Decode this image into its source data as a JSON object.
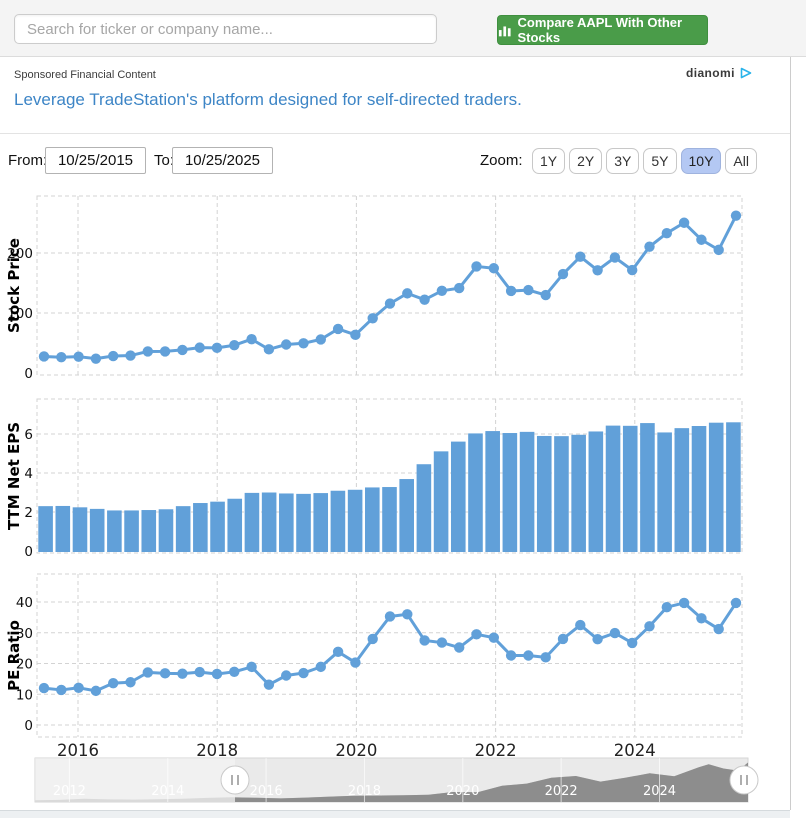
{
  "topbar": {
    "search_placeholder": "Search for ticker or company name...",
    "compare_button_label": "Compare AAPL With Other Stocks"
  },
  "sponsored": {
    "section_label": "Sponsored Financial Content",
    "provider_label": "dianomi",
    "headline": "Leverage TradeStation's platform designed for self-directed traders."
  },
  "controls": {
    "from_label": "From:",
    "from_value": "10/25/2015",
    "to_label": "To:",
    "to_value": "10/25/2025",
    "zoom_label": "Zoom:",
    "zoom_options": [
      "1Y",
      "2Y",
      "3Y",
      "5Y",
      "10Y",
      "All"
    ],
    "zoom_selected": "10Y"
  },
  "colors": {
    "accent_blue": "#61a0d9",
    "button_green": "#4a9c49",
    "zoom_selected_bg": "#b4c8f3",
    "link_blue": "#3d85c6",
    "grid": "#d3d3d3",
    "axis_text": "#111111",
    "nav_selected_area": "#8d8d8d",
    "nav_unselected_area": "#c6c6c6",
    "nav_background": "#eaeaea",
    "nav_label_text": "#ffffff"
  },
  "chart_data": [
    {
      "type": "line",
      "name": "stock-price",
      "ylabel": "Stock Price",
      "yticks": [
        0,
        100,
        200
      ],
      "ylim": [
        0,
        295
      ],
      "xticks": [
        "2016",
        "2018",
        "2020",
        "2022",
        "2024"
      ],
      "grid": "dashed",
      "markers": true,
      "x": [
        "2015-09",
        "2015-12",
        "2016-03",
        "2016-06",
        "2016-09",
        "2016-12",
        "2017-03",
        "2017-06",
        "2017-09",
        "2017-12",
        "2018-03",
        "2018-06",
        "2018-09",
        "2018-12",
        "2019-03",
        "2019-06",
        "2019-09",
        "2019-12",
        "2020-03",
        "2020-06",
        "2020-09",
        "2020-12",
        "2021-03",
        "2021-06",
        "2021-09",
        "2021-12",
        "2022-03",
        "2022-06",
        "2022-09",
        "2022-12",
        "2023-03",
        "2023-06",
        "2023-09",
        "2023-12",
        "2024-03",
        "2024-06",
        "2024-09",
        "2024-12",
        "2025-03",
        "2025-06",
        "2025-09"
      ],
      "values": [
        27.6,
        26.3,
        27.2,
        23.9,
        28.3,
        29.0,
        35.9,
        36.0,
        38.5,
        42.3,
        41.9,
        46.3,
        56.4,
        39.4,
        47.5,
        49.5,
        56.0,
        73.4,
        63.6,
        91.2,
        115.8,
        132.7,
        122.2,
        137.0,
        141.5,
        177.6,
        174.6,
        136.7,
        138.2,
        129.9,
        164.9,
        193.9,
        171.2,
        192.5,
        171.5,
        210.6,
        233.0,
        250.4,
        222.1,
        205.2,
        262.2
      ]
    },
    {
      "type": "bar",
      "name": "ttm-net-eps",
      "ylabel": "TTM Net EPS",
      "yticks": [
        0,
        2,
        4,
        6
      ],
      "ylim": [
        0,
        7.8
      ],
      "grid": "dashed",
      "x": [
        "2015-09",
        "2015-12",
        "2016-03",
        "2016-06",
        "2016-09",
        "2016-12",
        "2017-03",
        "2017-06",
        "2017-09",
        "2017-12",
        "2018-03",
        "2018-06",
        "2018-09",
        "2018-12",
        "2019-03",
        "2019-06",
        "2019-09",
        "2019-12",
        "2020-03",
        "2020-06",
        "2020-09",
        "2020-12",
        "2021-03",
        "2021-06",
        "2021-09",
        "2021-12",
        "2022-03",
        "2022-06",
        "2022-09",
        "2022-12",
        "2023-03",
        "2023-06",
        "2023-09",
        "2023-12",
        "2024-03",
        "2024-06",
        "2024-09",
        "2024-12",
        "2025-03",
        "2025-06",
        "2025-09"
      ],
      "values": [
        2.3,
        2.31,
        2.24,
        2.16,
        2.08,
        2.08,
        2.1,
        2.14,
        2.3,
        2.46,
        2.53,
        2.68,
        2.98,
        3.0,
        2.95,
        2.93,
        2.97,
        3.09,
        3.14,
        3.26,
        3.28,
        3.69,
        4.45,
        5.11,
        5.61,
        6.03,
        6.15,
        6.05,
        6.11,
        5.9,
        5.89,
        5.96,
        6.13,
        6.43,
        6.42,
        6.56,
        6.08,
        6.3,
        6.41,
        6.58,
        6.6
      ]
    },
    {
      "type": "line",
      "name": "pe-ratio",
      "ylabel": "PE Ratio",
      "yticks": [
        0,
        10,
        20,
        30,
        40
      ],
      "ylim": [
        0,
        49
      ],
      "xticks": [
        "2016",
        "2018",
        "2020",
        "2022",
        "2024"
      ],
      "grid": "dashed",
      "markers": true,
      "x": [
        "2015-09",
        "2015-12",
        "2016-03",
        "2016-06",
        "2016-09",
        "2016-12",
        "2017-03",
        "2017-06",
        "2017-09",
        "2017-12",
        "2018-03",
        "2018-06",
        "2018-09",
        "2018-12",
        "2019-03",
        "2019-06",
        "2019-09",
        "2019-12",
        "2020-03",
        "2020-06",
        "2020-09",
        "2020-12",
        "2021-03",
        "2021-06",
        "2021-09",
        "2021-12",
        "2022-03",
        "2022-06",
        "2022-09",
        "2022-12",
        "2023-03",
        "2023-06",
        "2023-09",
        "2023-12",
        "2024-03",
        "2024-06",
        "2024-09",
        "2024-12",
        "2025-03",
        "2025-06",
        "2025-09"
      ],
      "values": [
        12.0,
        11.4,
        12.1,
        11.1,
        13.6,
        13.9,
        17.1,
        16.8,
        16.7,
        17.2,
        16.6,
        17.3,
        18.9,
        13.1,
        16.1,
        16.9,
        18.9,
        23.8,
        20.3,
        28.0,
        35.3,
        36.0,
        27.5,
        26.8,
        25.2,
        29.5,
        28.4,
        22.6,
        22.6,
        22.0,
        28.0,
        32.5,
        27.9,
        29.9,
        26.7,
        32.1,
        38.3,
        39.7,
        34.7,
        31.2,
        39.7
      ]
    },
    {
      "type": "area",
      "name": "range-navigator",
      "labels": [
        "2012",
        "2014",
        "2016",
        "2018",
        "2020",
        "2022",
        "2024"
      ],
      "xlim": [
        2011.3,
        2025.8
      ],
      "selected_window_start": "10/25/2015",
      "x": [
        2011.3,
        2011.8,
        2012.3,
        2012.8,
        2013.3,
        2013.8,
        2014.3,
        2014.8,
        2015.3,
        2015.8,
        2016.3,
        2016.8,
        2017.3,
        2017.8,
        2018.3,
        2018.8,
        2019.3,
        2019.8,
        2020.3,
        2020.8,
        2021.3,
        2021.8,
        2022.3,
        2022.8,
        2023.3,
        2023.8,
        2024.3,
        2024.8,
        2025.0,
        2025.3,
        2025.6,
        2025.8
      ],
      "values": [
        12,
        14,
        21,
        17,
        16,
        18,
        21,
        27,
        31,
        28,
        24,
        29,
        36,
        42,
        43,
        45,
        48,
        66,
        64,
        108,
        122,
        160,
        172,
        135,
        160,
        190,
        170,
        230,
        250,
        222,
        208,
        262
      ]
    }
  ]
}
